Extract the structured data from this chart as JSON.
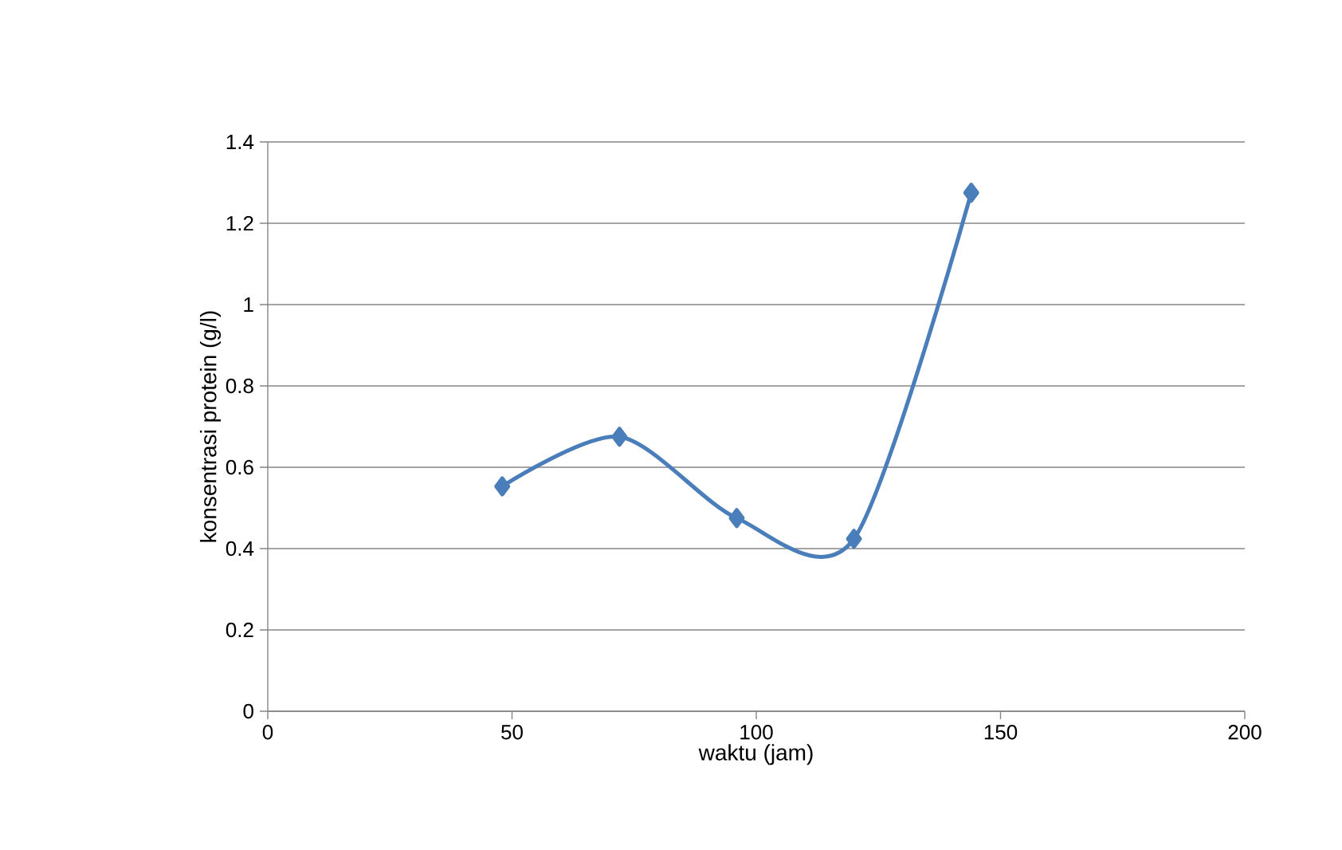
{
  "chart_data": {
    "type": "line",
    "xlabel": "waktu (jam)",
    "ylabel": "konsentrasi protein (g/l)",
    "x": [
      48,
      72,
      96,
      120,
      144
    ],
    "series": [
      {
        "color": "#4a7ebb",
        "values": [
          0.553,
          0.675,
          0.475,
          0.424,
          1.275
        ]
      }
    ],
    "xlim": [
      0,
      200
    ],
    "ylim": [
      0,
      1.4
    ],
    "xticks": [
      0,
      50,
      100,
      150,
      200
    ],
    "yticks": [
      0,
      0.2,
      0.4,
      0.6,
      0.8,
      1,
      1.2,
      1.4
    ],
    "grid": "y",
    "marker": "diamond",
    "line_style": "solid"
  }
}
